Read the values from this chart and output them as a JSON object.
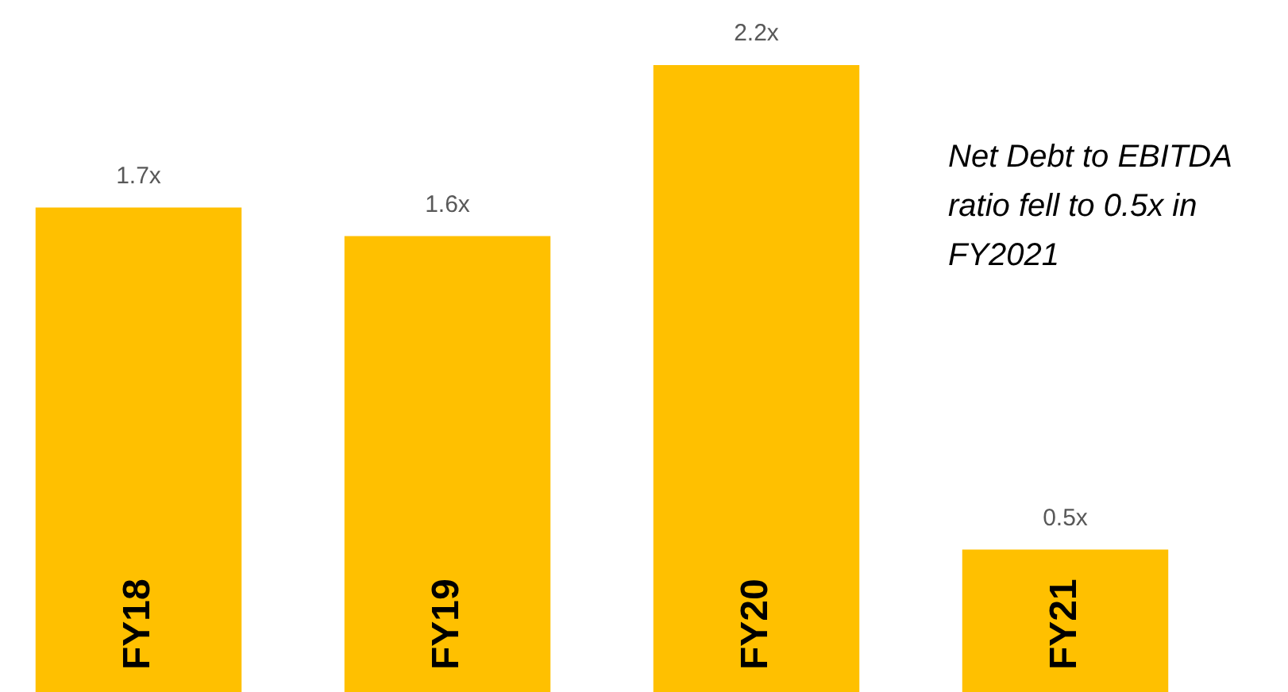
{
  "chart_data": {
    "type": "bar",
    "categories": [
      "FY18",
      "FY19",
      "FY20",
      "FY21"
    ],
    "values": [
      1.7,
      1.6,
      2.2,
      0.5
    ],
    "color": "#ffc000",
    "value_labels": [
      "1.7x",
      "1.6x",
      "2.2x",
      "0.5x"
    ],
    "annotations": [
      "Net Debt to EBITDA ratio fell to 0.5x in FY2021"
    ]
  }
}
